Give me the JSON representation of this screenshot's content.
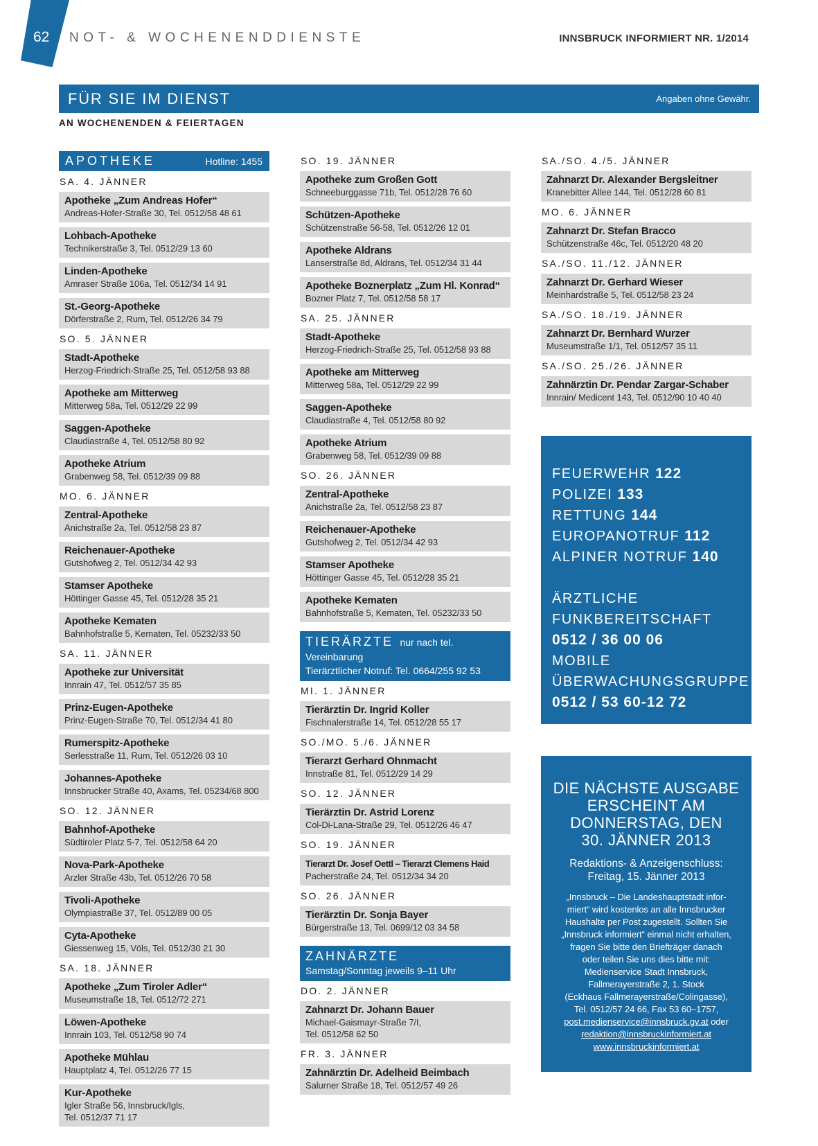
{
  "masthead": {
    "page_number": "62",
    "section_title": "NOT- & WOCHENENDDIENSTE",
    "issue": "INNSBRUCK INFORMIERT NR. 1/2014"
  },
  "banner": {
    "title": "FÜR SIE IM DIENST",
    "disclaimer": "Angaben ohne Gewähr.",
    "subtitle": "AN WOCHENENDEN & FEIERTAGEN"
  },
  "colors": {
    "blue": "#1a6aa3",
    "box_gray": "#d8d8d8"
  },
  "apotheke": {
    "title": "APOTHEKE",
    "hotline": "Hotline: 1455",
    "col1": [
      {
        "date": "SA. 4. JÄNNER",
        "entries": [
          {
            "name": "Apotheke „Zum Andreas Hofer“",
            "addr": "Andreas-Hofer-Straße 30, Tel. 0512/58 48 61"
          },
          {
            "name": "Lohbach-Apotheke",
            "addr": "Technikerstraße 3, Tel. 0512/29 13 60"
          },
          {
            "name": "Linden-Apotheke",
            "addr": "Amraser Straße 106a, Tel. 0512/34 14 91"
          },
          {
            "name": "St.-Georg-Apotheke",
            "addr": "Dörferstraße 2, Rum, Tel. 0512/26 34 79"
          }
        ]
      },
      {
        "date": "SO. 5. JÄNNER",
        "entries": [
          {
            "name": "Stadt-Apotheke",
            "addr": "Herzog-Friedrich-Straße 25, Tel. 0512/58 93 88"
          },
          {
            "name": "Apotheke am Mitterweg",
            "addr": "Mitterweg 58a, Tel. 0512/29 22 99"
          },
          {
            "name": "Saggen-Apotheke",
            "addr": "Claudiastraße 4, Tel. 0512/58 80 92"
          },
          {
            "name": "Apotheke Atrium",
            "addr": "Grabenweg 58, Tel. 0512/39 09 88"
          }
        ]
      },
      {
        "date": "MO. 6. JÄNNER",
        "entries": [
          {
            "name": "Zentral-Apotheke",
            "addr": "Anichstraße 2a, Tel. 0512/58 23 87"
          },
          {
            "name": "Reichenauer-Apotheke",
            "addr": "Gutshofweg 2, Tel. 0512/34 42 93"
          },
          {
            "name": "Stamser Apotheke",
            "addr": "Höttinger Gasse 45, Tel. 0512/28 35 21"
          },
          {
            "name": "Apotheke Kematen",
            "addr": "Bahnhofstraße 5, Kematen, Tel. 05232/33 50"
          }
        ]
      },
      {
        "date": "SA. 11. JÄNNER",
        "entries": [
          {
            "name": "Apotheke zur Universität",
            "addr": "Innrain 47, Tel. 0512/57 35 85"
          },
          {
            "name": "Prinz-Eugen-Apotheke",
            "addr": "Prinz-Eugen-Straße 70, Tel. 0512/34 41 80"
          },
          {
            "name": "Rumerspitz-Apotheke",
            "addr": "Serlesstraße 11, Rum, Tel. 0512/26 03 10"
          },
          {
            "name": "Johannes-Apotheke",
            "addr": "Innsbrucker Straße 40, Axams, Tel. 05234/68 800"
          }
        ]
      },
      {
        "date": "SO. 12. JÄNNER",
        "entries": [
          {
            "name": "Bahnhof-Apotheke",
            "addr": "Südtiroler Platz 5-7, Tel. 0512/58 64 20"
          },
          {
            "name": "Nova-Park-Apotheke",
            "addr": "Arzler Straße 43b, Tel. 0512/26 70 58"
          },
          {
            "name": "Tivoli-Apotheke",
            "addr": "Olympiastraße 37, Tel. 0512/89 00 05"
          },
          {
            "name": "Cyta-Apotheke",
            "addr": "Giessenweg 15, Völs, Tel. 0512/30 21 30"
          }
        ]
      },
      {
        "date": "SA. 18. JÄNNER",
        "entries": [
          {
            "name": "Apotheke „Zum Tiroler Adler“",
            "addr": "Museumstraße 18, Tel. 0512/72 271"
          },
          {
            "name": "Löwen-Apotheke",
            "addr": "Innrain 103, Tel. 0512/58 90 74"
          },
          {
            "name": "Apotheke Mühlau",
            "addr": "Hauptplatz 4, Tel. 0512/26 77 15"
          },
          {
            "name": "Kur-Apotheke",
            "addr": "Igler Straße 56, Innsbruck/Igls,",
            "addr2": "Tel. 0512/37 71 17"
          }
        ]
      }
    ],
    "col2": [
      {
        "date": "SO. 19. JÄNNER",
        "entries": [
          {
            "name": "Apotheke zum Großen Gott",
            "addr": "Schneeburggasse 71b, Tel. 0512/28 76 60"
          },
          {
            "name": "Schützen-Apotheke",
            "addr": "Schützenstraße 56-58, Tel. 0512/26 12 01"
          },
          {
            "name": "Apotheke Aldrans",
            "addr": "Lanserstraße 8d, Aldrans, Tel. 0512/34 31 44"
          },
          {
            "name": "Apotheke Boznerplatz „Zum Hl. Konrad“",
            "addr": "Bozner Platz 7, Tel. 0512/58 58 17"
          }
        ]
      },
      {
        "date": "SA. 25. JÄNNER",
        "entries": [
          {
            "name": "Stadt-Apotheke",
            "addr": "Herzog-Friedrich-Straße 25, Tel. 0512/58 93 88"
          },
          {
            "name": "Apotheke am Mitterweg",
            "addr": "Mitterweg 58a, Tel. 0512/29 22 99"
          },
          {
            "name": "Saggen-Apotheke",
            "addr": "Claudiastraße 4, Tel. 0512/58 80 92"
          },
          {
            "name": "Apotheke Atrium",
            "addr": "Grabenweg 58, Tel. 0512/39 09 88"
          }
        ]
      },
      {
        "date": "SO. 26. JÄNNER",
        "entries": [
          {
            "name": "Zentral-Apotheke",
            "addr": "Anichstraße 2a, Tel. 0512/58 23 87"
          },
          {
            "name": "Reichenauer-Apotheke",
            "addr": "Gutshofweg 2, Tel. 0512/34 42 93"
          },
          {
            "name": "Stamser Apotheke",
            "addr": "Höttinger Gasse 45, Tel. 0512/28 35 21"
          },
          {
            "name": "Apotheke Kematen",
            "addr": "Bahnhofstraße 5, Kematen, Tel. 05232/33 50"
          }
        ]
      }
    ]
  },
  "tieraerzte": {
    "title": "TIERÄRZTE",
    "note": "nur nach tel. Vereinbarung",
    "notruf": "Tierärztlicher Notruf: Tel. 0664/255 92 53",
    "groups": [
      {
        "date": "MI. 1. JÄNNER",
        "entries": [
          {
            "name": "Tierärztin Dr. Ingrid Koller",
            "addr": "Fischnalerstraße 14, Tel. 0512/28 55 17"
          }
        ]
      },
      {
        "date": "SO./MO. 5./6. JÄNNER",
        "entries": [
          {
            "name": "Tierarzt Gerhard Ohnmacht",
            "addr": "Innstraße 81, Tel. 0512/29 14 29"
          }
        ]
      },
      {
        "date": "SO. 12. JÄNNER",
        "entries": [
          {
            "name": "Tierärztin Dr. Astrid Lorenz",
            "addr": "Col-Di-Lana-Straße 29, Tel. 0512/26 46 47"
          }
        ]
      },
      {
        "date": "SO. 19. JÄNNER",
        "entries": [
          {
            "name": "Tierarzt Dr. Josef Oettl – Tierarzt Clemens Haid",
            "addr": "Pacherstraße 24, Tel. 0512/34 34 20"
          }
        ]
      },
      {
        "date": "SO. 26. JÄNNER",
        "entries": [
          {
            "name": "Tierärztin Dr. Sonja Bayer",
            "addr": "Bürgerstraße 13, Tel. 0699/12 03 34 58"
          }
        ]
      }
    ]
  },
  "zahnaerzte": {
    "title": "ZAHNÄRZTE",
    "hours": "Samstag/Sonntag jeweils 9–11 Uhr",
    "col2": [
      {
        "date": "DO. 2. JÄNNER",
        "entries": [
          {
            "name": "Zahnarzt Dr. Johann Bauer",
            "addr": "Michael-Gaismayr-Straße 7/I,",
            "addr2": "Tel. 0512/58 62 50"
          }
        ]
      },
      {
        "date": "FR. 3. JÄNNER",
        "entries": [
          {
            "name": "Zahnärztin Dr. Adelheid Beimbach",
            "addr": "Salurner Straße 18, Tel. 0512/57 49 26"
          }
        ]
      }
    ],
    "col3": [
      {
        "date": "SA./SO. 4./5. JÄNNER",
        "entries": [
          {
            "name": "Zahnarzt Dr. Alexander Bergsleitner",
            "addr": "Kranebitter Allee 144, Tel. 0512/28 60 81"
          }
        ]
      },
      {
        "date": "MO. 6. JÄNNER",
        "entries": [
          {
            "name": "Zahnarzt Dr. Stefan Bracco",
            "addr": "Schützenstraße 46c, Tel. 0512/20 48 20"
          }
        ]
      },
      {
        "date": "SA./SO. 11./12. JÄNNER",
        "entries": [
          {
            "name": "Zahnarzt Dr. Gerhard Wieser",
            "addr": "Meinhardstraße 5, Tel. 0512/58 23 24"
          }
        ]
      },
      {
        "date": "SA./SO. 18./19. JÄNNER",
        "entries": [
          {
            "name": "Zahnarzt Dr. Bernhard Wurzer",
            "addr": "Museumstraße 1/1, Tel. 0512/57 35 11"
          }
        ]
      },
      {
        "date": "SA./SO. 25./26. JÄNNER",
        "entries": [
          {
            "name": "Zahnärztin Dr. Pendar Zargar-Schaber",
            "addr": "Innrain/ Medicent 143, Tel. 0512/90 10 40 40"
          }
        ]
      }
    ]
  },
  "emergency": {
    "lines": [
      {
        "label": "FEUERWEHR",
        "number": "122"
      },
      {
        "label": "POLIZEI",
        "number": "133"
      },
      {
        "label": "RETTUNG",
        "number": "144"
      },
      {
        "label": "EUROPANOTRUF",
        "number": "112"
      },
      {
        "label": "ALPINER NOTRUF",
        "number": "140"
      }
    ],
    "services": [
      {
        "label": "ÄRZTLICHE FUNKBEREITSCHAFT",
        "number": "0512 / 36 00 06"
      },
      {
        "label": "MOBILE ÜBERWACHUNGSGRUPPE",
        "number": "0512 / 53 60-12 72"
      }
    ]
  },
  "next_issue": {
    "title_lines": [
      "DIE NÄCHSTE AUSGABE",
      "ERSCHEINT AM",
      "DONNERSTAG, DEN",
      "30. JÄNNER 2013"
    ],
    "deadline_line1": "Redaktions- & Anzeigenschluss:",
    "deadline_line2": "Freitag, 15. Jänner 2013",
    "body_lines": [
      "„Innsbruck – Die Landeshauptstadt infor-",
      "miert“ wird kostenlos an alle Innsbrucker",
      "Haushalte per Post zugestellt. Sollten Sie",
      "„Innsbruck informiert“ einmal nicht erhalten,",
      "fragen Sie bitte den Briefträger danach",
      "oder teilen Sie uns dies bitte mit:",
      "Medienservice Stadt Innsbruck,",
      "Fallmerayerstraße 2, 1. Stock",
      "(Eckhaus Fallmerayerstraße/Colingasse),",
      "Tel. 0512/57 24 66, Fax 53 60–1757,"
    ],
    "email1": "post.medienservice@innsbruck.gv.at",
    "email1_suffix": " oder",
    "email2": "redaktion@innsbruckinformiert.at",
    "website": "www.innsbruckinformiert.at"
  }
}
